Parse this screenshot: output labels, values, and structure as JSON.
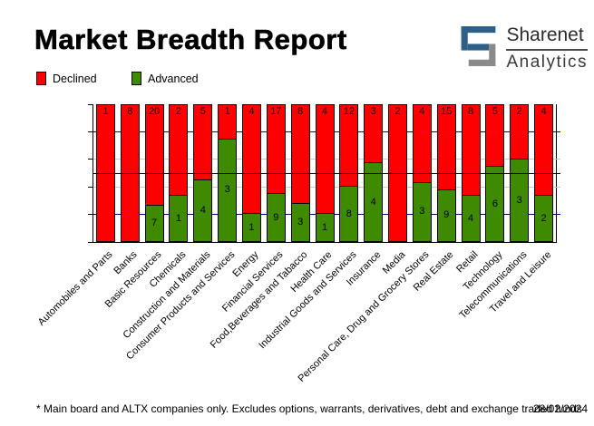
{
  "header": {
    "title": "Market Breadth Report",
    "logo": {
      "line1": "Sharenet",
      "line2": "Analytics"
    }
  },
  "legend": [
    {
      "label": "Declined",
      "color": "#ff0000"
    },
    {
      "label": "Advanced",
      "color": "#3e8a00"
    }
  ],
  "colors": {
    "declined": "#ff0000",
    "advanced": "#3e8a00",
    "grid_minor_navy": "#000080",
    "grid_minor_gray": "#c9c9c9",
    "mid_line_black": "#000000",
    "logo_blue": "#2d5f87",
    "logo_gray": "#8a8a8a"
  },
  "chart_data": {
    "type": "bar",
    "stacked": true,
    "normalized": "percent",
    "title": "Market Breadth Report",
    "xlabel": "",
    "ylabel": "",
    "ylim": [
      0,
      100
    ],
    "y_ticks": [
      "0%",
      "20%",
      "40%",
      "60%",
      "80%",
      "100%"
    ],
    "legend_position": "top-left",
    "grid": true,
    "gridlines": [
      {
        "y": 80,
        "color": "#000080",
        "over_bars": false
      },
      {
        "y": 60,
        "color": "#c9c9c9",
        "over_bars": false
      },
      {
        "y": 50,
        "color": "#000000",
        "over_bars": true
      },
      {
        "y": 40,
        "color": "#c9c9c9",
        "over_bars": false
      },
      {
        "y": 20,
        "color": "#000080",
        "over_bars": false
      }
    ],
    "categories": [
      "Automobiles and Parts",
      "Banks",
      "Basic Resources",
      "Chemicals",
      "Construction and Materials",
      "Consumer Products and Services",
      "Energy",
      "Financial Services",
      "Food,Beverages and Tabacco",
      "Health Care",
      "Industrial Goods and Services",
      "Insurance",
      "Media",
      "Personal Care, Drug and Grocery Stores",
      "Real Estate",
      "Retail",
      "Technology",
      "Telecommunications",
      "Travel and Leisure"
    ],
    "series": [
      {
        "name": "Declined",
        "color": "#ff0000",
        "values": [
          1,
          8,
          20,
          2,
          5,
          1,
          4,
          17,
          8,
          4,
          12,
          3,
          2,
          4,
          15,
          8,
          5,
          2,
          4
        ]
      },
      {
        "name": "Advanced",
        "color": "#3e8a00",
        "values": [
          0,
          0,
          7,
          1,
          4,
          3,
          1,
          9,
          3,
          1,
          8,
          4,
          0,
          3,
          9,
          4,
          6,
          3,
          2
        ]
      }
    ]
  },
  "footer": {
    "note": "* Main board and ALTX companies only. Excludes options, warrants, derivatives, debt and exchange traded funds",
    "date": "28/02/2024"
  }
}
